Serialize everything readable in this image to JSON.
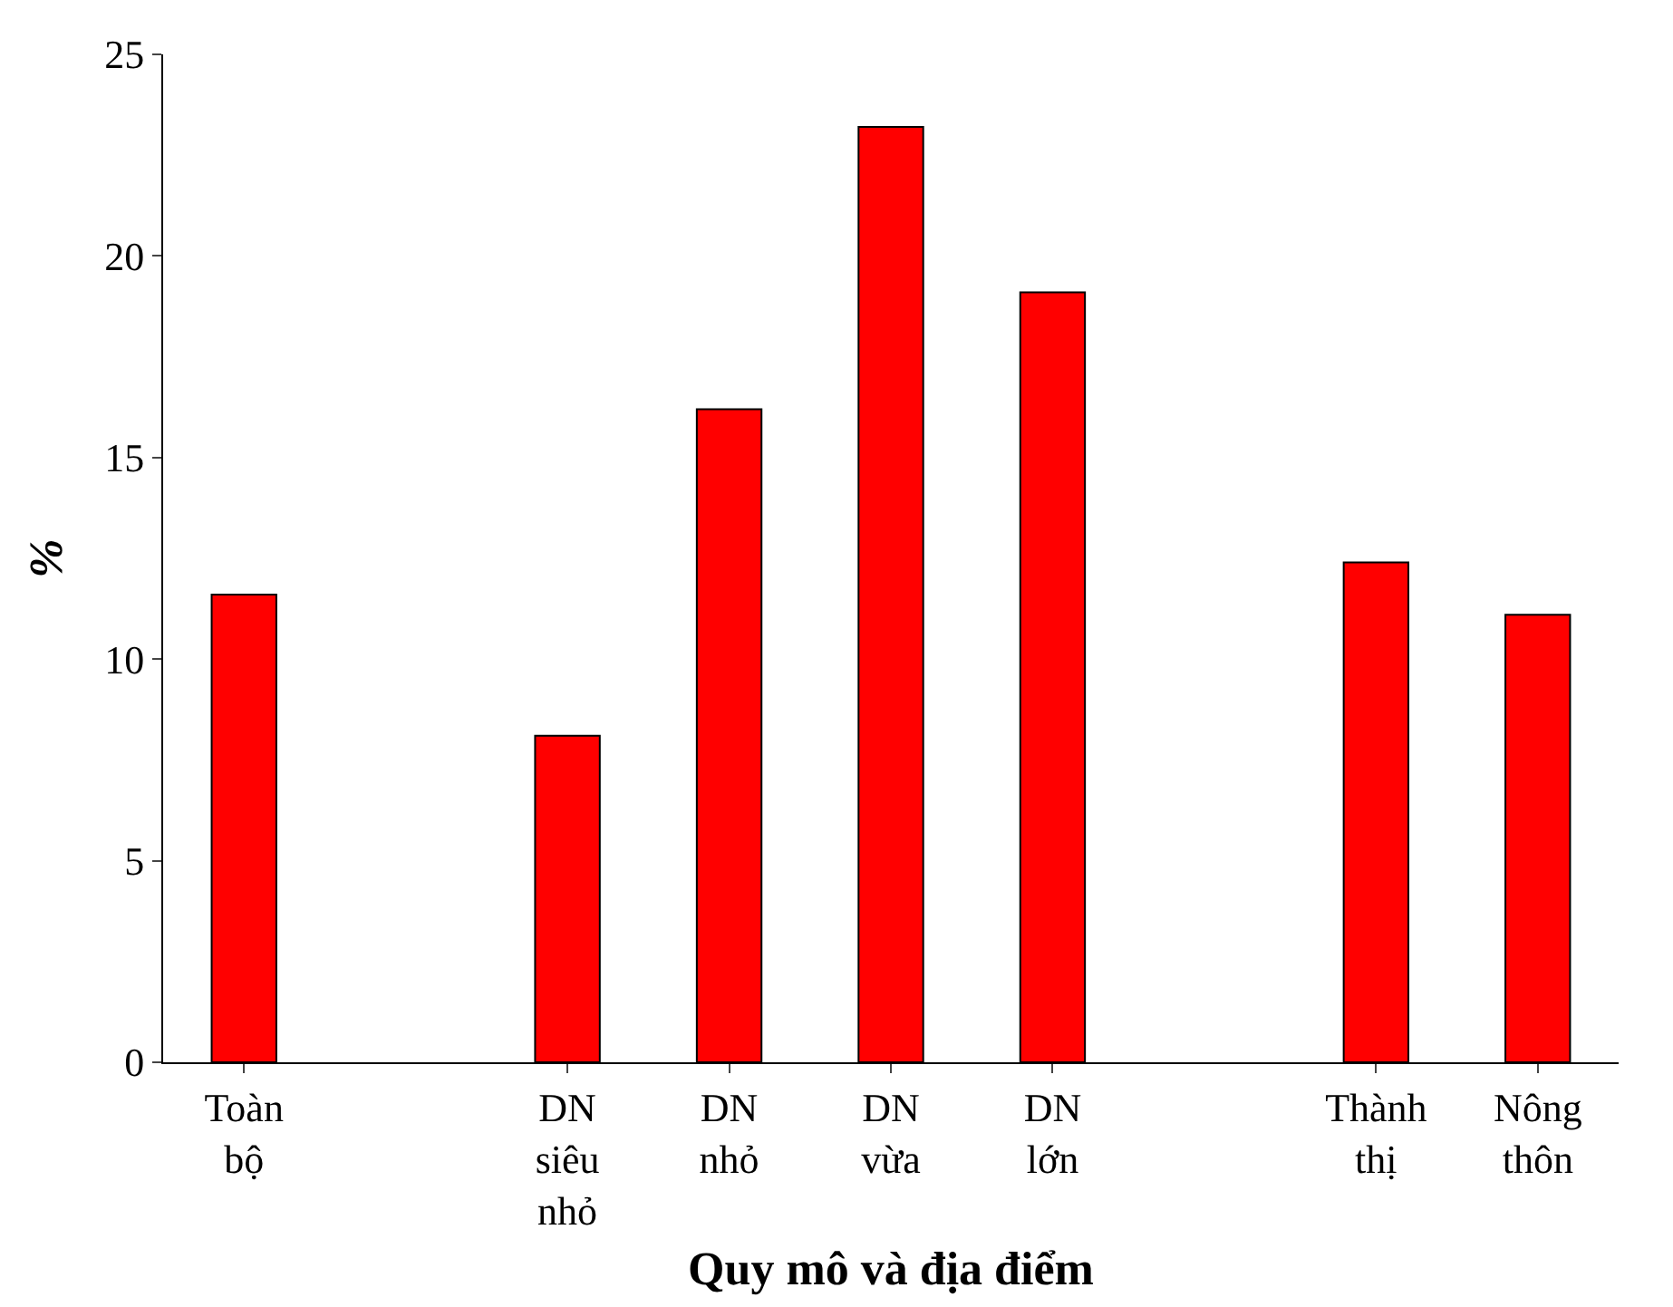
{
  "chart_data": {
    "type": "bar",
    "xlabel": "Quy mô và địa điểm",
    "ylabel": "%",
    "categories": [
      "Toàn bộ",
      null,
      "DN siêu nhỏ",
      "DN nhỏ",
      "DN vừa",
      "DN lớn",
      null,
      "Thành thị",
      "Nông thôn"
    ],
    "values": [
      11.6,
      null,
      8.1,
      16.2,
      23.2,
      19.1,
      null,
      12.4,
      11.1
    ],
    "color": "#ff0000",
    "ylim": [
      0,
      25
    ],
    "yticks": [
      0,
      5,
      10,
      15,
      20,
      25
    ]
  }
}
